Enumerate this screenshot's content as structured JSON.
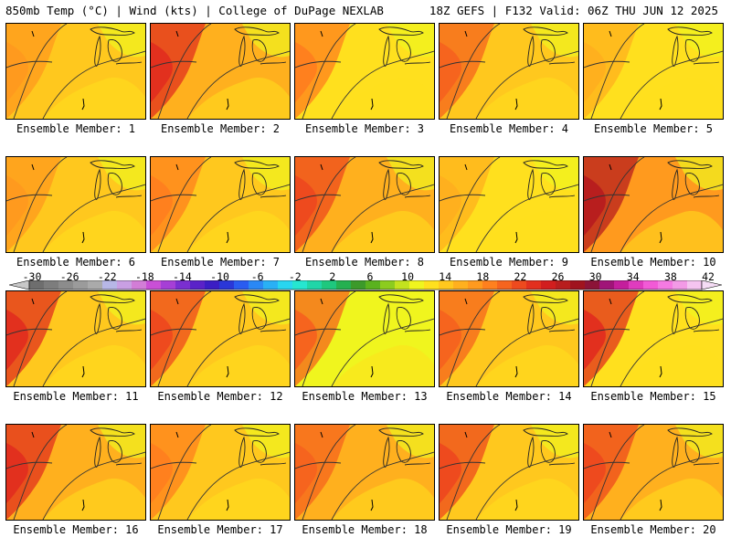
{
  "header": {
    "left": "850mb Temp (°C) | Wind (kts) | College of DuPage NEXLAB",
    "right": "18Z GEFS | F132 Valid: 06Z THU JUN 12 2025"
  },
  "colorbar": {
    "labels": [
      "-30",
      "-26",
      "-22",
      "-18",
      "-14",
      "-10",
      "-6",
      "-2",
      "2",
      "6",
      "10",
      "14",
      "18",
      "22",
      "26",
      "30",
      "34",
      "38",
      "42"
    ],
    "colors": [
      "#6e6e6e",
      "#7d7d7d",
      "#8c8c8c",
      "#9b9b9b",
      "#aaaaaa",
      "#b7b7e6",
      "#c99fe3",
      "#d27dd6",
      "#c94fd6",
      "#a63fd6",
      "#7a2fd0",
      "#5a22c8",
      "#3b1ec4",
      "#2a37d8",
      "#2a5cf0",
      "#2a88f5",
      "#29b0f5",
      "#28d6f0",
      "#26e6d0",
      "#20d6a8",
      "#1ec87e",
      "#25b050",
      "#3c9a2a",
      "#5ab21e",
      "#8ccc1e",
      "#c3e21e",
      "#f0f51e",
      "#ffe01e",
      "#ffc81e",
      "#ffb01e",
      "#ff9a1e",
      "#ff801e",
      "#f6641e",
      "#ee4a1e",
      "#e2301e",
      "#d21e1e",
      "#b81e1e",
      "#a0141e",
      "#8c1438",
      "#a01478",
      "#c41e9c",
      "#e03cbe",
      "#f25ad6",
      "#f57ae2",
      "#f39ae6",
      "#f5c4f0"
    ]
  },
  "members": [
    {
      "label": "Ensemble Member: 1",
      "base": "#ffc81e",
      "hot": "#ff9a1e"
    },
    {
      "label": "Ensemble Member: 2",
      "base": "#ffb01e",
      "hot": "#e2301e"
    },
    {
      "label": "Ensemble Member: 3",
      "base": "#ffe01e",
      "hot": "#ff801e"
    },
    {
      "label": "Ensemble Member: 4",
      "base": "#ffc81e",
      "hot": "#f6641e"
    },
    {
      "label": "Ensemble Member: 5",
      "base": "#ffe01e",
      "hot": "#ffb01e"
    },
    {
      "label": "Ensemble Member: 6",
      "base": "#ffc81e",
      "hot": "#ff9a1e"
    },
    {
      "label": "Ensemble Member: 7",
      "base": "#ffc81e",
      "hot": "#ff801e"
    },
    {
      "label": "Ensemble Member: 8",
      "base": "#ffb01e",
      "hot": "#ee4a1e"
    },
    {
      "label": "Ensemble Member: 9",
      "base": "#ffe01e",
      "hot": "#ffb01e"
    },
    {
      "label": "Ensemble Member: 10",
      "base": "#ff9a1e",
      "hot": "#b81e1e"
    },
    {
      "label": "Ensemble Member: 11",
      "base": "#ffc81e",
      "hot": "#e2301e"
    },
    {
      "label": "Ensemble Member: 12",
      "base": "#ffc81e",
      "hot": "#ee4a1e"
    },
    {
      "label": "Ensemble Member: 13",
      "base": "#f0f51e",
      "hot": "#f6641e"
    },
    {
      "label": "Ensemble Member: 14",
      "base": "#ffc81e",
      "hot": "#f6641e"
    },
    {
      "label": "Ensemble Member: 15",
      "base": "#ffe01e",
      "hot": "#e2301e"
    },
    {
      "label": "Ensemble Member: 16",
      "base": "#ffb01e",
      "hot": "#e2301e"
    },
    {
      "label": "Ensemble Member: 17",
      "base": "#ffc81e",
      "hot": "#ff801e"
    },
    {
      "label": "Ensemble Member: 18",
      "base": "#ffb01e",
      "hot": "#f6641e"
    },
    {
      "label": "Ensemble Member: 19",
      "base": "#ffc81e",
      "hot": "#ee4a1e"
    },
    {
      "label": "Ensemble Member: 20",
      "base": "#ffb01e",
      "hot": "#ee4a1e"
    }
  ]
}
